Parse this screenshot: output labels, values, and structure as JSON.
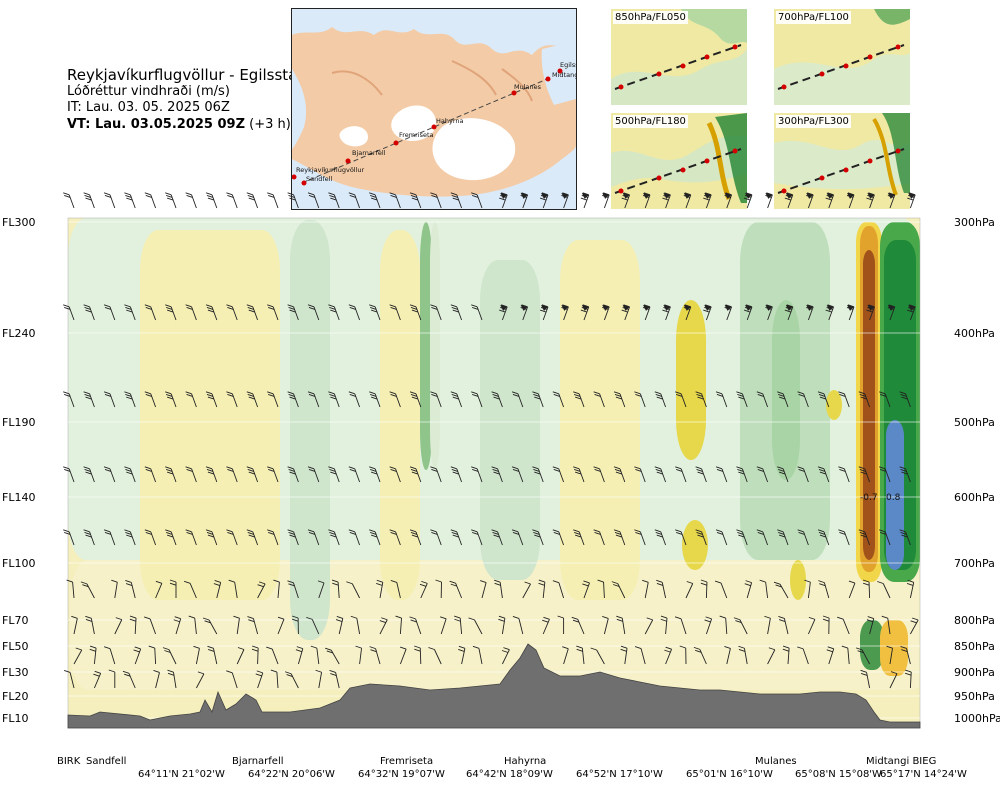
{
  "header": {
    "route": "Reykjavíkurflugvöllur - Egilsstadir",
    "parameter": "Lóðréttur vindhraði (m/s)",
    "initial_time": "IT: Lau. 03. 05. 2025 06Z",
    "valid_time_bold": "VT: Lau. 03.05.2025 09Z",
    "valid_time_suffix": "(+3 h)"
  },
  "map": {
    "places": [
      "Egilsstadir",
      "Midtangi",
      "Mulanes",
      "Hahyrna",
      "Fremriseta",
      "Bjarnarfell",
      "Reykjavíkurflugvöllur",
      "Sandfell"
    ],
    "places_display": [
      "Egilss",
      "Midtang",
      "Mulanes",
      "Hahyrna",
      "Fremriseta",
      "Bjarnarfell",
      "Reykjavíkurflugvöllur",
      "Sandfell"
    ]
  },
  "thumbnails": [
    {
      "label": "850hPa/FL050"
    },
    {
      "label": "700hPa/FL100"
    },
    {
      "label": "500hPa/FL180"
    },
    {
      "label": "300hPa/FL300"
    }
  ],
  "chart_data": {
    "type": "heatmap",
    "title": "Reykjavíkurflugvöllur - Egilsstadir",
    "subtitle": "Lóðréttur vindhraði (m/s)",
    "variable": "vertical velocity",
    "units": "m/s",
    "left_axis_flight_levels": [
      "FL300",
      "FL240",
      "FL190",
      "FL140",
      "FL100",
      "FL70",
      "FL50",
      "FL30",
      "FL20",
      "FL10"
    ],
    "right_axis_pressure": [
      "300hPa",
      "400hPa",
      "500hPa",
      "600hPa",
      "700hPa",
      "800hPa",
      "850hPa",
      "900hPa",
      "950hPa",
      "1000hPa"
    ],
    "pressure_range_hpa": [
      1000,
      300
    ],
    "x_waypoints": [
      "BIRK",
      "Sandfell",
      "Bjarnarfell",
      "Fremriseta",
      "Hahyrna",
      "Mulanes",
      "Midtangi BIEG"
    ],
    "x_coordinates": [
      "64°11'N 21°02'W",
      "64°22'N 20°06'W",
      "64°32'N 19°07'W",
      "64°42'N 18°09'W",
      "64°52'N 17°10'W",
      "65°01'N 16°10'W",
      "65°08'N 15°08'W",
      "65°17'N 14°24'W"
    ],
    "annotations": [
      {
        "text": "-0.7",
        "value": -0.7
      },
      {
        "text": "0.8",
        "value": 0.8
      }
    ],
    "extremes_m_s": {
      "min": -0.7,
      "max": 0.8
    }
  }
}
